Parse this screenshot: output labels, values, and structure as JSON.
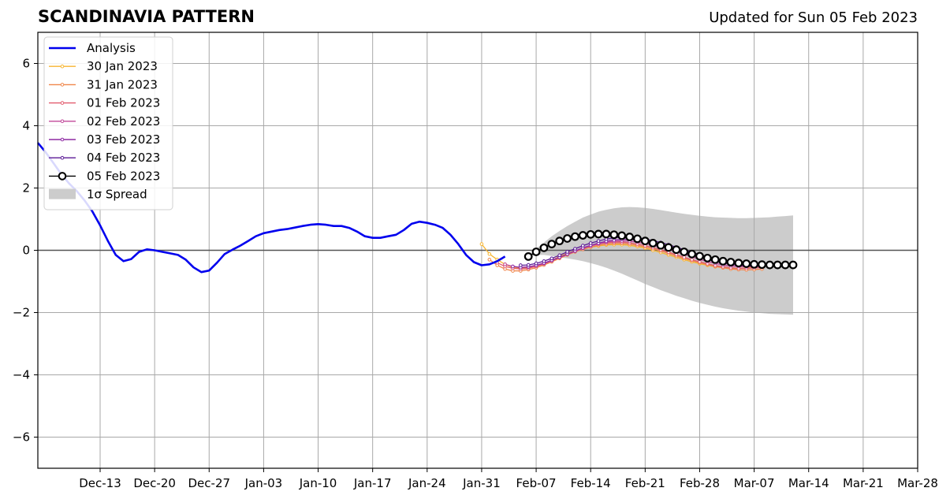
{
  "chart_data": {
    "type": "line",
    "title": "SCANDINAVIA PATTERN",
    "subtitle": "Updated for Sun 05 Feb 2023",
    "xlabel": "",
    "ylabel": "",
    "x_range": [
      "2022-12-05",
      "2023-03-28"
    ],
    "ylim": [
      -7,
      7
    ],
    "grid": true,
    "legend_position": "top-left",
    "x_ticks": [
      {
        "date": "2022-12-13",
        "label": "Dec-13"
      },
      {
        "date": "2022-12-20",
        "label": "Dec-20"
      },
      {
        "date": "2022-12-27",
        "label": "Dec-27"
      },
      {
        "date": "2023-01-03",
        "label": "Jan-03"
      },
      {
        "date": "2023-01-10",
        "label": "Jan-10"
      },
      {
        "date": "2023-01-17",
        "label": "Jan-17"
      },
      {
        "date": "2023-01-24",
        "label": "Jan-24"
      },
      {
        "date": "2023-01-31",
        "label": "Jan-31"
      },
      {
        "date": "2023-02-07",
        "label": "Feb-07"
      },
      {
        "date": "2023-02-14",
        "label": "Feb-14"
      },
      {
        "date": "2023-02-21",
        "label": "Feb-21"
      },
      {
        "date": "2023-02-28",
        "label": "Feb-28"
      },
      {
        "date": "2023-03-07",
        "label": "Mar-07"
      },
      {
        "date": "2023-03-14",
        "label": "Mar-14"
      },
      {
        "date": "2023-03-21",
        "label": "Mar-21"
      },
      {
        "date": "2023-03-28",
        "label": "Mar-28"
      }
    ],
    "y_ticks": [
      {
        "value": 6,
        "label": "6"
      },
      {
        "value": 4,
        "label": "4"
      },
      {
        "value": 2,
        "label": "2"
      },
      {
        "value": 0,
        "label": "0"
      },
      {
        "value": -2,
        "label": "−2"
      },
      {
        "value": -4,
        "label": "−4"
      },
      {
        "value": -6,
        "label": "−6"
      }
    ],
    "analysis": {
      "name": "Analysis",
      "color": "#0000ee",
      "start_date": "2022-12-05",
      "values": [
        3.45,
        3.15,
        2.8,
        2.45,
        2.15,
        1.9,
        1.6,
        1.25,
        0.8,
        0.3,
        -0.15,
        -0.35,
        -0.28,
        -0.05,
        0.03,
        0.0,
        -0.05,
        -0.1,
        -0.15,
        -0.3,
        -0.55,
        -0.7,
        -0.65,
        -0.4,
        -0.12,
        0.02,
        0.15,
        0.3,
        0.45,
        0.55,
        0.6,
        0.65,
        0.68,
        0.73,
        0.78,
        0.82,
        0.84,
        0.82,
        0.78,
        0.78,
        0.72,
        0.6,
        0.45,
        0.4,
        0.4,
        0.45,
        0.5,
        0.65,
        0.85,
        0.92,
        0.88,
        0.82,
        0.72,
        0.5,
        0.2,
        -0.15,
        -0.38,
        -0.48,
        -0.45,
        -0.35,
        -0.2
      ]
    },
    "forecasts": [
      {
        "name": "30 Jan 2023",
        "color": "#f7b530",
        "start_date": "2023-01-31",
        "values": [
          0.2,
          -0.12,
          -0.3,
          -0.45,
          -0.55,
          -0.58,
          -0.55,
          -0.5,
          -0.42,
          -0.32,
          -0.2,
          -0.1,
          -0.02,
          0.05,
          0.1,
          0.14,
          0.17,
          0.18,
          0.18,
          0.16,
          0.12,
          0.07,
          0.0,
          -0.07,
          -0.15,
          -0.22,
          -0.3,
          -0.37,
          -0.43,
          -0.48,
          -0.53,
          -0.56,
          -0.58,
          -0.58,
          -0.57,
          -0.55
        ]
      },
      {
        "name": "31 Jan 2023",
        "color": "#f0864a",
        "start_date": "2023-02-01",
        "values": [
          -0.3,
          -0.48,
          -0.6,
          -0.66,
          -0.66,
          -0.62,
          -0.56,
          -0.47,
          -0.37,
          -0.26,
          -0.15,
          -0.05,
          0.03,
          0.1,
          0.16,
          0.2,
          0.22,
          0.22,
          0.2,
          0.16,
          0.11,
          0.05,
          -0.02,
          -0.1,
          -0.18,
          -0.26,
          -0.33,
          -0.4,
          -0.46,
          -0.52,
          -0.56,
          -0.6,
          -0.62,
          -0.63,
          -0.62,
          -0.6
        ]
      },
      {
        "name": "01 Feb 2023",
        "color": "#e25c6e",
        "start_date": "2023-02-02",
        "values": [
          -0.4,
          -0.52,
          -0.58,
          -0.6,
          -0.58,
          -0.52,
          -0.44,
          -0.34,
          -0.23,
          -0.12,
          -0.02,
          0.07,
          0.14,
          0.2,
          0.24,
          0.26,
          0.26,
          0.24,
          0.2,
          0.15,
          0.09,
          0.02,
          -0.06,
          -0.14,
          -0.22,
          -0.3,
          -0.37,
          -0.43,
          -0.49,
          -0.53,
          -0.56,
          -0.58,
          -0.58,
          -0.57,
          -0.55
        ]
      },
      {
        "name": "02 Feb 2023",
        "color": "#c0479a",
        "start_date": "2023-02-03",
        "values": [
          -0.45,
          -0.52,
          -0.55,
          -0.54,
          -0.49,
          -0.42,
          -0.33,
          -0.23,
          -0.13,
          -0.03,
          0.06,
          0.14,
          0.21,
          0.26,
          0.29,
          0.3,
          0.29,
          0.26,
          0.22,
          0.16,
          0.1,
          0.03,
          -0.05,
          -0.13,
          -0.21,
          -0.29,
          -0.36,
          -0.42,
          -0.47,
          -0.5,
          -0.52,
          -0.53,
          -0.53,
          -0.52
        ]
      },
      {
        "name": "03 Feb 2023",
        "color": "#8e2aa4",
        "start_date": "2023-02-04",
        "values": [
          -0.52,
          -0.55,
          -0.53,
          -0.48,
          -0.41,
          -0.32,
          -0.22,
          -0.12,
          -0.02,
          0.08,
          0.16,
          0.23,
          0.29,
          0.33,
          0.35,
          0.35,
          0.33,
          0.29,
          0.24,
          0.18,
          0.11,
          0.03,
          -0.05,
          -0.13,
          -0.21,
          -0.29,
          -0.36,
          -0.41,
          -0.45,
          -0.48,
          -0.5,
          -0.5,
          -0.49
        ]
      },
      {
        "name": "04 Feb 2023",
        "color": "#5b1a96",
        "start_date": "2023-02-05",
        "values": [
          -0.48,
          -0.47,
          -0.42,
          -0.35,
          -0.26,
          -0.16,
          -0.05,
          0.05,
          0.15,
          0.23,
          0.3,
          0.36,
          0.4,
          0.42,
          0.42,
          0.4,
          0.36,
          0.31,
          0.25,
          0.18,
          0.1,
          0.02,
          -0.06,
          -0.14,
          -0.22,
          -0.29,
          -0.35,
          -0.4,
          -0.43,
          -0.45,
          -0.46,
          -0.46
        ]
      },
      {
        "name": "05 Feb 2023",
        "color": "#000000",
        "marker": "open-circle",
        "start_date": "2023-02-06",
        "values": [
          -0.2,
          -0.05,
          0.08,
          0.2,
          0.3,
          0.38,
          0.44,
          0.48,
          0.51,
          0.52,
          0.52,
          0.5,
          0.47,
          0.43,
          0.37,
          0.3,
          0.23,
          0.16,
          0.09,
          0.02,
          -0.05,
          -0.12,
          -0.19,
          -0.25,
          -0.3,
          -0.35,
          -0.38,
          -0.41,
          -0.43,
          -0.45,
          -0.46,
          -0.47,
          -0.47,
          -0.47,
          -0.47
        ]
      }
    ],
    "spread": {
      "name": "1σ Spread",
      "color": "#cccccc",
      "start_date": "2023-02-06",
      "upper": [
        -0.2,
        0.05,
        0.25,
        0.45,
        0.62,
        0.78,
        0.92,
        1.05,
        1.15,
        1.24,
        1.3,
        1.35,
        1.38,
        1.39,
        1.38,
        1.36,
        1.33,
        1.29,
        1.25,
        1.21,
        1.17,
        1.14,
        1.11,
        1.08,
        1.06,
        1.05,
        1.04,
        1.03,
        1.03,
        1.04,
        1.05,
        1.06,
        1.08,
        1.1,
        1.12
      ],
      "lower": [
        -0.2,
        -0.15,
        -0.15,
        -0.18,
        -0.22,
        -0.26,
        -0.3,
        -0.35,
        -0.41,
        -0.48,
        -0.56,
        -0.65,
        -0.75,
        -0.86,
        -0.97,
        -1.08,
        -1.18,
        -1.28,
        -1.37,
        -1.46,
        -1.54,
        -1.62,
        -1.69,
        -1.75,
        -1.81,
        -1.86,
        -1.9,
        -1.94,
        -1.97,
        -2.0,
        -2.02,
        -2.04,
        -2.05,
        -2.06,
        -2.07
      ]
    }
  }
}
